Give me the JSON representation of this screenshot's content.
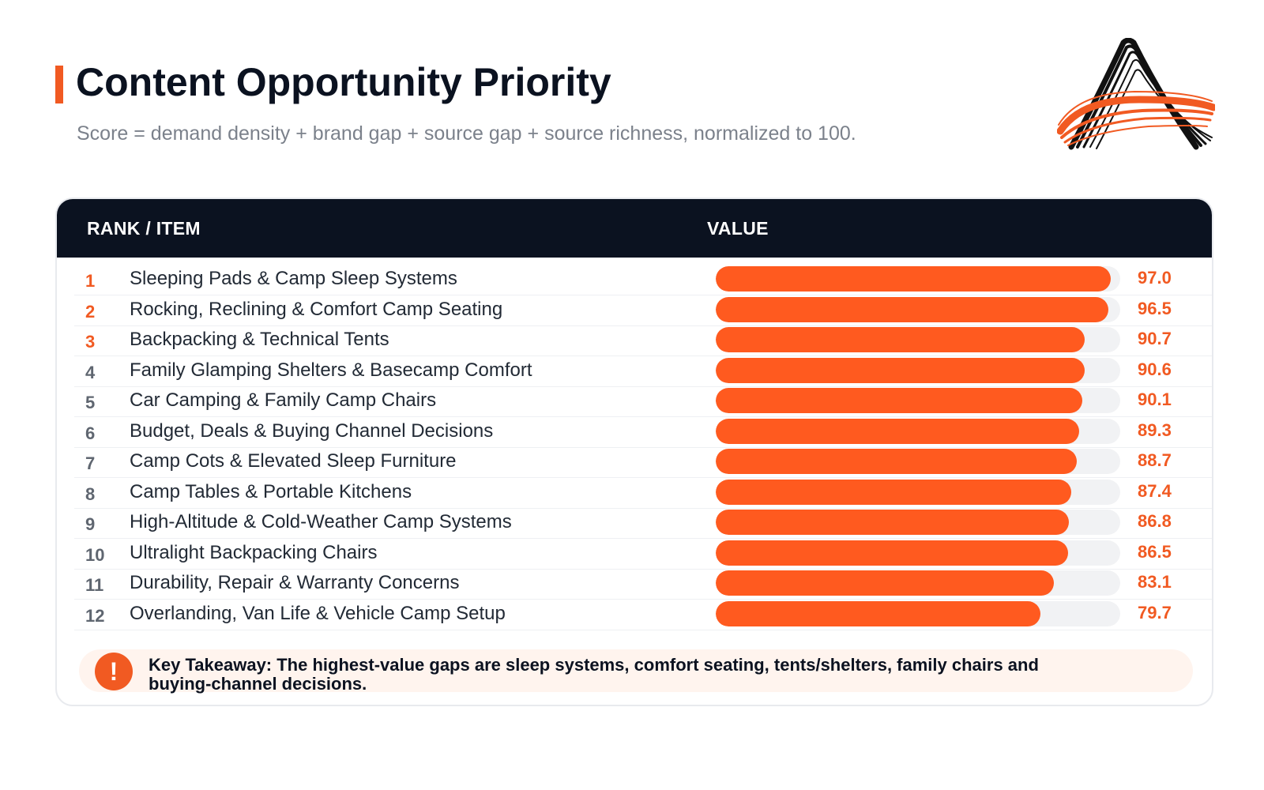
{
  "header": {
    "title": "Content Opportunity Priority",
    "subtitle": "Score = demand density + brand gap + source gap + source richness, normalized to 100."
  },
  "logo": {
    "icon": "stylized-letter-a-logo-icon",
    "colors": {
      "stroke_dark": "#111111",
      "stroke_accent": "#f15a22"
    }
  },
  "table": {
    "column_rank_item": "RANK / ITEM",
    "column_value": "VALUE"
  },
  "chart_data": {
    "type": "bar",
    "orientation": "horizontal",
    "scale_max": 100,
    "categories": [
      "Sleeping Pads & Camp Sleep Systems",
      "Rocking, Reclining & Comfort Camp Seating",
      "Backpacking & Technical Tents",
      "Family Glamping Shelters & Basecamp Comfort",
      "Car Camping & Family Camp Chairs",
      "Budget, Deals & Buying Channel Decisions",
      "Camp Cots & Elevated Sleep Furniture",
      "Camp Tables & Portable Kitchens",
      "High-Altitude & Cold-Weather Camp Systems",
      "Ultralight Backpacking Chairs",
      "Durability, Repair & Warranty Concerns",
      "Overlanding, Van Life & Vehicle Camp Setup"
    ],
    "ranks": [
      "1",
      "2",
      "3",
      "4",
      "5",
      "6",
      "7",
      "8",
      "9",
      "10",
      "11",
      "12"
    ],
    "values": [
      97.0,
      96.5,
      90.7,
      90.6,
      90.1,
      89.3,
      88.7,
      87.4,
      86.8,
      86.5,
      83.1,
      79.7
    ],
    "value_labels": [
      "97.0",
      "96.5",
      "90.7",
      "90.6",
      "90.1",
      "89.3",
      "88.7",
      "87.4",
      "86.8",
      "86.5",
      "83.1",
      "79.7"
    ],
    "highlight_top_n": 3,
    "colors": {
      "bar": "#ff5a1f",
      "track": "#f1f2f4",
      "accent": "#f15a22",
      "rank_default": "#5f6670"
    }
  },
  "takeaway": {
    "icon": "exclamation-icon",
    "icon_glyph": "!",
    "text": "Key Takeaway: The highest-value gaps are sleep systems, comfort seating, tents/shelters, family chairs and buying-channel decisions."
  }
}
